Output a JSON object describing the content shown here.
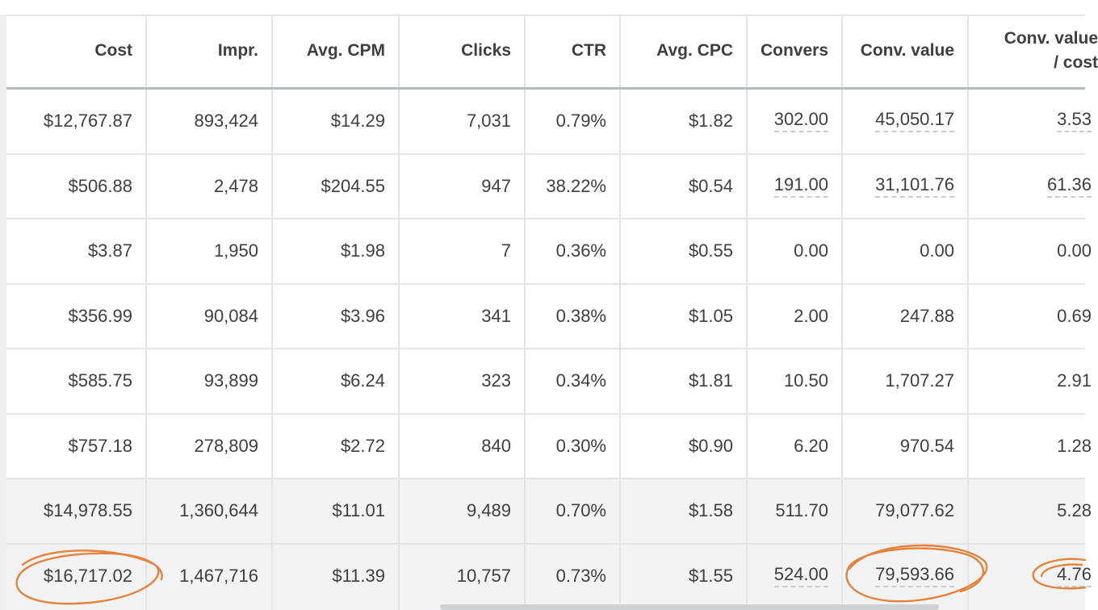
{
  "table": {
    "headers": [
      "Cost",
      "Impr.",
      "Avg. CPM",
      "Clicks",
      "CTR",
      "Avg. CPC",
      "Convers",
      "Conv. value",
      "Conv. value\n/ cost"
    ],
    "rows": [
      [
        "$12,767.87",
        "893,424",
        "$14.29",
        "7,031",
        "0.79%",
        "$1.82",
        "302.00",
        "45,050.17",
        "3.53"
      ],
      [
        "$506.88",
        "2,478",
        "$204.55",
        "947",
        "38.22%",
        "$0.54",
        "191.00",
        "31,101.76",
        "61.36"
      ],
      [
        "$3.87",
        "1,950",
        "$1.98",
        "7",
        "0.36%",
        "$0.55",
        "0.00",
        "0.00",
        "0.00"
      ],
      [
        "$356.99",
        "90,084",
        "$3.96",
        "341",
        "0.38%",
        "$1.05",
        "2.00",
        "247.88",
        "0.69"
      ],
      [
        "$585.75",
        "93,899",
        "$6.24",
        "323",
        "0.34%",
        "$1.81",
        "10.50",
        "1,707.27",
        "2.91"
      ],
      [
        "$757.18",
        "278,809",
        "$2.72",
        "840",
        "0.30%",
        "$0.90",
        "6.20",
        "970.54",
        "1.28"
      ]
    ],
    "totals": [
      [
        "$14,978.55",
        "1,360,644",
        "$11.01",
        "9,489",
        "0.70%",
        "$1.58",
        "511.70",
        "79,077.62",
        "5.28"
      ],
      [
        "$16,717.02",
        "1,467,716",
        "$11.39",
        "10,757",
        "0.73%",
        "$1.55",
        "524.00",
        "79,593.66",
        "4.76"
      ]
    ]
  },
  "colors": {
    "text": "#3c4043",
    "grid": "#e3e5e8",
    "header_rule": "#b6bbc0",
    "totals_band": "#f1f3f5",
    "annotation": "#e8823a"
  }
}
